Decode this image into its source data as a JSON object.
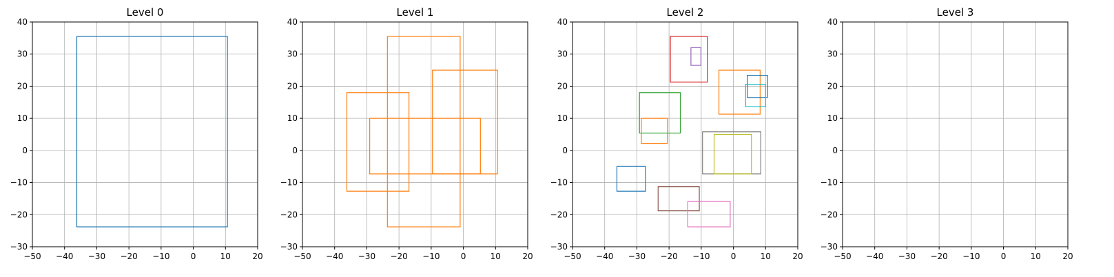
{
  "chart_data": [
    {
      "type": "box-layout",
      "title": "Level 0",
      "xlim": [
        -50,
        20
      ],
      "ylim": [
        -30,
        40
      ],
      "xticks": [
        -50,
        -40,
        -30,
        -20,
        -10,
        0,
        10,
        20
      ],
      "yticks": [
        -30,
        -20,
        -10,
        0,
        10,
        20,
        30,
        40
      ],
      "grid": true,
      "boxes": [
        {
          "x0": -36.2,
          "x1": 10.6,
          "y0": -23.8,
          "y1": 35.5,
          "color": "#1f77b4"
        }
      ]
    },
    {
      "type": "box-layout",
      "title": "Level 1",
      "xlim": [
        -50,
        20
      ],
      "ylim": [
        -30,
        40
      ],
      "xticks": [
        -50,
        -40,
        -30,
        -20,
        -10,
        0,
        10,
        20
      ],
      "yticks": [
        -30,
        -20,
        -10,
        0,
        10,
        20,
        30,
        40
      ],
      "grid": true,
      "boxes": [
        {
          "x0": -23.6,
          "x1": -1.0,
          "y0": -23.8,
          "y1": 35.5,
          "color": "#ff7f0e"
        },
        {
          "x0": -9.6,
          "x1": 10.6,
          "y0": -7.3,
          "y1": 25.0,
          "color": "#ff7f0e"
        },
        {
          "x0": -36.2,
          "x1": -16.9,
          "y0": -12.7,
          "y1": 18.0,
          "color": "#ff7f0e"
        },
        {
          "x0": -29.1,
          "x1": 5.3,
          "y0": -7.3,
          "y1": 10.0,
          "color": "#ff7f0e"
        }
      ]
    },
    {
      "type": "box-layout",
      "title": "Level 2",
      "xlim": [
        -50,
        20
      ],
      "ylim": [
        -30,
        40
      ],
      "xticks": [
        -50,
        -40,
        -30,
        -20,
        -10,
        0,
        10,
        20
      ],
      "yticks": [
        -30,
        -20,
        -10,
        0,
        10,
        20,
        30,
        40
      ],
      "grid": true,
      "boxes": [
        {
          "x0": -19.6,
          "x1": -8.1,
          "y0": 21.3,
          "y1": 35.5,
          "color": "#d62728"
        },
        {
          "x0": -13.2,
          "x1": -10.1,
          "y0": 26.5,
          "y1": 32.0,
          "color": "#9467bd"
        },
        {
          "x0": -4.5,
          "x1": 8.3,
          "y0": 11.3,
          "y1": 25.0,
          "color": "#ff7f0e"
        },
        {
          "x0": 4.3,
          "x1": 10.6,
          "y0": 16.5,
          "y1": 23.4,
          "color": "#1f77b4"
        },
        {
          "x0": 3.8,
          "x1": 10.0,
          "y0": 13.6,
          "y1": 20.6,
          "color": "#17becf"
        },
        {
          "x0": -29.2,
          "x1": -16.5,
          "y0": 5.4,
          "y1": 18.0,
          "color": "#2ca02c"
        },
        {
          "x0": -28.6,
          "x1": -20.5,
          "y0": 2.2,
          "y1": 10.0,
          "color": "#ff7f0e"
        },
        {
          "x0": -9.6,
          "x1": 8.5,
          "y0": -7.3,
          "y1": 5.8,
          "color": "#7f7f7f"
        },
        {
          "x0": -6.0,
          "x1": 5.6,
          "y0": -7.3,
          "y1": 5.0,
          "color": "#bcbd22"
        },
        {
          "x0": -36.2,
          "x1": -27.3,
          "y0": -12.7,
          "y1": -5.0,
          "color": "#1f77b4"
        },
        {
          "x0": -23.4,
          "x1": -10.6,
          "y0": -18.8,
          "y1": -11.3,
          "color": "#8c564b"
        },
        {
          "x0": -14.2,
          "x1": -1.0,
          "y0": -23.8,
          "y1": -15.9,
          "color": "#e377c2"
        }
      ]
    },
    {
      "type": "box-layout",
      "title": "Level 3",
      "xlim": [
        -50,
        20
      ],
      "ylim": [
        -30,
        40
      ],
      "xticks": [
        -50,
        -40,
        -30,
        -20,
        -10,
        0,
        10,
        20
      ],
      "yticks": [
        -30,
        -20,
        -10,
        0,
        10,
        20,
        30,
        40
      ],
      "grid": true,
      "boxes": []
    }
  ]
}
